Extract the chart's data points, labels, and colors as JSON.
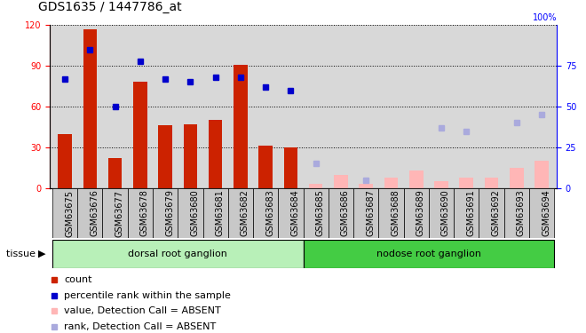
{
  "title": "GDS1635 / 1447786_at",
  "samples": [
    "GSM63675",
    "GSM63676",
    "GSM63677",
    "GSM63678",
    "GSM63679",
    "GSM63680",
    "GSM63681",
    "GSM63682",
    "GSM63683",
    "GSM63684",
    "GSM63685",
    "GSM63686",
    "GSM63687",
    "GSM63688",
    "GSM63689",
    "GSM63690",
    "GSM63691",
    "GSM63692",
    "GSM63693",
    "GSM63694"
  ],
  "bar_present": [
    40,
    117,
    22,
    78,
    46,
    47,
    50,
    91,
    31,
    30,
    null,
    null,
    null,
    null,
    null,
    null,
    null,
    null,
    null,
    null
  ],
  "bar_absent": [
    null,
    null,
    null,
    null,
    null,
    null,
    null,
    null,
    null,
    null,
    3,
    10,
    3,
    8,
    13,
    5,
    8,
    8,
    15,
    20
  ],
  "rank_present": [
    67,
    85,
    50,
    78,
    67,
    65,
    68,
    68,
    62,
    60,
    null,
    null,
    null,
    null,
    null,
    null,
    null,
    null,
    null,
    null
  ],
  "rank_absent": [
    null,
    null,
    null,
    null,
    null,
    null,
    null,
    null,
    null,
    null,
    15,
    null,
    5,
    null,
    null,
    37,
    35,
    null,
    40,
    45
  ],
  "dorsal_count": 10,
  "ylim_left": [
    0,
    120
  ],
  "ylim_right": [
    0,
    100
  ],
  "yticks_left": [
    0,
    30,
    60,
    90,
    120
  ],
  "yticks_right": [
    0,
    25,
    50,
    75
  ],
  "bar_present_color": "#cc2200",
  "bar_absent_color": "#ffb6b6",
  "rank_present_color": "#0000cc",
  "rank_absent_color": "#aaaadd",
  "plot_bg": "#d8d8d8",
  "xlabel_bg": "#c8c8c8",
  "dorsal_color": "#b8f0b8",
  "nodose_color": "#44cc44",
  "title_fontsize": 10,
  "axis_fontsize": 7,
  "legend_fontsize": 8
}
